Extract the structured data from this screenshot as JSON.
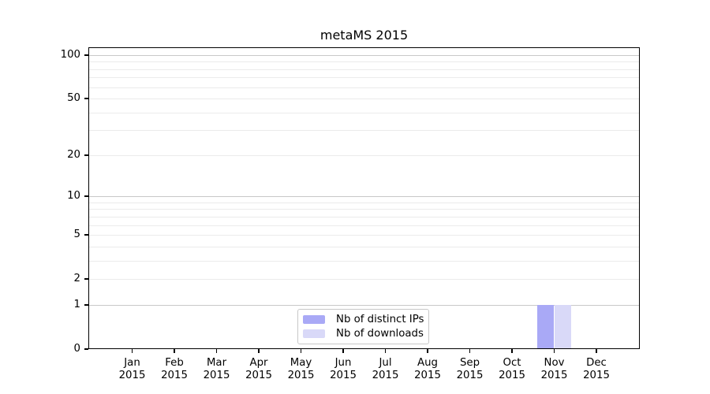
{
  "chart_data": {
    "type": "bar",
    "title": "metaMS 2015",
    "categories": [
      "Jan 2015",
      "Feb 2015",
      "Mar 2015",
      "Apr 2015",
      "May 2015",
      "Jun 2015",
      "Jul 2015",
      "Aug 2015",
      "Sep 2015",
      "Oct 2015",
      "Nov 2015",
      "Dec 2015"
    ],
    "series": [
      {
        "name": "Nb of distinct IPs",
        "color": "#a9a9f6",
        "values": [
          0,
          0,
          0,
          0,
          0,
          0,
          0,
          0,
          0,
          0,
          1,
          0
        ]
      },
      {
        "name": "Nb of downloads",
        "color": "#d9d9f8",
        "values": [
          0,
          0,
          0,
          0,
          0,
          0,
          0,
          0,
          0,
          0,
          1,
          0
        ]
      }
    ],
    "xlabel": "",
    "ylabel": "",
    "yscale": "log1p",
    "ylim": [
      0,
      113
    ],
    "y_tick_values": [
      0,
      1,
      2,
      5,
      10,
      20,
      50,
      100
    ],
    "y_major_gridlines": [
      1,
      10,
      100
    ],
    "y_minor_gridlines": [
      2,
      3,
      4,
      5,
      6,
      7,
      8,
      9,
      20,
      30,
      40,
      50,
      60,
      70,
      80,
      90
    ],
    "grid": true,
    "legend_position": "lower center",
    "colors": {
      "major_grid": "#c8c8c8",
      "minor_grid": "#ebebeb",
      "spine": "#000000",
      "legend_border": "#c8c8c8"
    }
  }
}
